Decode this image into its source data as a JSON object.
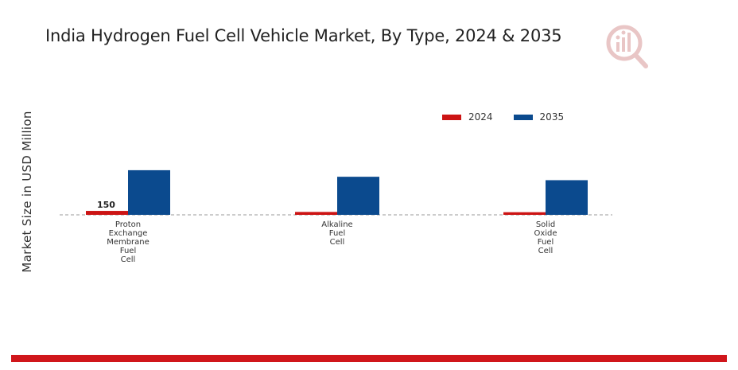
{
  "title": "India Hydrogen Fuel Cell Vehicle Market, By Type, 2024 & 2035",
  "colors": {
    "accent": "#d0161b",
    "series_2024": "#cc1414",
    "series_2035": "#0b4a8e"
  },
  "chart_data": {
    "type": "bar",
    "title": "India Hydrogen Fuel Cell Vehicle Market, By Type, 2024 & 2035",
    "xlabel": "",
    "ylabel": "Market Size in USD Million",
    "categories": [
      [
        "Proton",
        "Exchange",
        "Membrane",
        "Fuel",
        "Cell"
      ],
      [
        "Alkaline",
        "Fuel",
        "Cell"
      ],
      [
        "Solid",
        "Oxide",
        "Fuel",
        "Cell"
      ]
    ],
    "series": [
      {
        "name": "2024",
        "values": [
          150,
          110,
          100
        ]
      },
      {
        "name": "2035",
        "values": [
          1700,
          1450,
          1320
        ]
      }
    ],
    "data_labels": [
      "150",
      "",
      ""
    ],
    "ylim": [
      0,
      2000
    ],
    "legend_position": "top-right",
    "grid": false
  }
}
